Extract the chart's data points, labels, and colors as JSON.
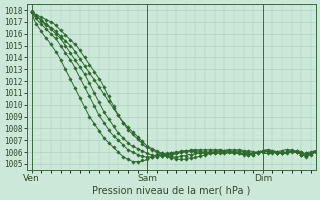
{
  "xlabel": "Pression niveau de la mer( hPa )",
  "bg_color": "#cce8d8",
  "grid_color": "#aacfbb",
  "line_color": "#2d6a2d",
  "marker_color": "#2d6a2d",
  "ylim": [
    1004.5,
    1018.5
  ],
  "yticks": [
    1005,
    1006,
    1007,
    1008,
    1009,
    1010,
    1011,
    1012,
    1013,
    1014,
    1015,
    1016,
    1017,
    1018
  ],
  "xtick_labels": [
    "Ven",
    "Sam",
    "Dim"
  ],
  "xtick_pos": [
    0,
    48,
    96
  ],
  "xlim": [
    -2,
    118
  ],
  "n_total": 120,
  "lines": [
    [
      1017.8,
      1017.6,
      1017.5,
      1017.3,
      1017.2,
      1017.0,
      1016.8,
      1016.7,
      1016.5,
      1016.4,
      1016.2,
      1016.0,
      1015.8,
      1015.6,
      1015.4,
      1015.2,
      1015.0,
      1014.8,
      1014.5,
      1014.2,
      1013.9,
      1013.6,
      1013.3,
      1013.0,
      1012.7,
      1012.4,
      1012.1,
      1011.8,
      1011.5,
      1011.2,
      1010.9,
      1010.6,
      1010.3,
      1010.0,
      1009.7,
      1009.4,
      1009.1,
      1008.8,
      1008.5,
      1008.3,
      1008.1,
      1007.9,
      1007.7,
      1007.5,
      1007.3,
      1007.1,
      1006.9,
      1006.7,
      1006.5,
      1006.4,
      1006.3,
      1006.2,
      1006.1,
      1006.0,
      1005.9,
      1005.8,
      1005.7,
      1005.6,
      1005.5,
      1005.5,
      1005.4,
      1005.4,
      1005.4,
      1005.4,
      1005.4,
      1005.5,
      1005.5,
      1005.5,
      1005.6,
      1005.6,
      1005.7,
      1005.7,
      1005.8,
      1005.8,
      1005.9,
      1005.9,
      1006.0,
      1006.0,
      1006.1,
      1006.1,
      1006.1,
      1006.2,
      1006.2,
      1006.2,
      1006.2,
      1006.2,
      1006.2,
      1006.2,
      1006.1,
      1006.1,
      1006.1,
      1006.1,
      1006.0,
      1006.0,
      1006.0,
      1006.0,
      1006.0,
      1005.9,
      1005.9,
      1005.9,
      1005.9,
      1006.0,
      1006.0,
      1006.1,
      1006.1,
      1006.2,
      1006.2,
      1006.2,
      1006.2,
      1006.1,
      1006.1,
      1006.0,
      1006.0,
      1005.9,
      1005.9,
      1005.9,
      1005.9,
      1006.0,
      1006.0,
      1006.0
    ],
    [
      1017.8,
      1017.2,
      1016.8,
      1016.5,
      1016.2,
      1015.9,
      1015.6,
      1015.4,
      1015.1,
      1014.8,
      1014.5,
      1014.2,
      1013.8,
      1013.4,
      1013.0,
      1012.6,
      1012.2,
      1011.8,
      1011.4,
      1011.0,
      1010.6,
      1010.2,
      1009.8,
      1009.4,
      1009.0,
      1008.7,
      1008.4,
      1008.1,
      1007.8,
      1007.5,
      1007.2,
      1007.0,
      1006.8,
      1006.6,
      1006.4,
      1006.2,
      1006.0,
      1005.8,
      1005.6,
      1005.5,
      1005.4,
      1005.3,
      1005.2,
      1005.2,
      1005.2,
      1005.2,
      1005.3,
      1005.3,
      1005.4,
      1005.5,
      1005.6,
      1005.7,
      1005.8,
      1005.8,
      1005.9,
      1005.9,
      1005.9,
      1005.9,
      1005.9,
      1005.9,
      1005.9,
      1006.0,
      1006.0,
      1006.1,
      1006.1,
      1006.1,
      1006.2,
      1006.2,
      1006.2,
      1006.2,
      1006.2,
      1006.2,
      1006.2,
      1006.2,
      1006.2,
      1006.2,
      1006.2,
      1006.2,
      1006.2,
      1006.2,
      1006.1,
      1006.1,
      1006.1,
      1006.0,
      1006.0,
      1006.0,
      1005.9,
      1005.9,
      1005.9,
      1005.9,
      1005.9,
      1005.9,
      1005.9,
      1006.0,
      1006.0,
      1006.1,
      1006.1,
      1006.2,
      1006.2,
      1006.2,
      1006.1,
      1006.1,
      1006.0,
      1006.0,
      1006.0,
      1005.9,
      1005.9,
      1006.0,
      1006.0,
      1006.1,
      1006.1,
      1006.1,
      1006.0,
      1005.9,
      1005.8,
      1005.8,
      1005.9,
      1006.0,
      1006.0,
      1006.0
    ],
    [
      1017.8,
      1017.5,
      1017.3,
      1017.0,
      1016.8,
      1016.6,
      1016.4,
      1016.2,
      1016.0,
      1015.8,
      1015.6,
      1015.3,
      1015.0,
      1014.7,
      1014.4,
      1014.1,
      1013.8,
      1013.5,
      1013.1,
      1012.7,
      1012.3,
      1011.9,
      1011.5,
      1011.1,
      1010.7,
      1010.3,
      1009.9,
      1009.5,
      1009.1,
      1008.8,
      1008.5,
      1008.2,
      1007.9,
      1007.6,
      1007.4,
      1007.2,
      1007.0,
      1006.8,
      1006.6,
      1006.4,
      1006.2,
      1006.1,
      1006.0,
      1005.9,
      1005.8,
      1005.7,
      1005.7,
      1005.6,
      1005.6,
      1005.6,
      1005.6,
      1005.6,
      1005.6,
      1005.7,
      1005.7,
      1005.8,
      1005.8,
      1005.9,
      1005.9,
      1006.0,
      1006.0,
      1006.0,
      1006.1,
      1006.1,
      1006.1,
      1006.1,
      1006.1,
      1006.1,
      1006.1,
      1006.1,
      1006.1,
      1006.0,
      1006.0,
      1006.0,
      1006.0,
      1006.0,
      1005.9,
      1005.9,
      1005.9,
      1005.9,
      1005.9,
      1005.9,
      1006.0,
      1006.0,
      1006.0,
      1006.1,
      1006.1,
      1006.1,
      1006.0,
      1006.0,
      1006.0,
      1005.9,
      1005.9,
      1005.9,
      1006.0,
      1006.0,
      1006.1,
      1006.1,
      1006.1,
      1006.0,
      1006.0,
      1006.0,
      1005.9,
      1005.9,
      1005.9,
      1006.0,
      1006.0,
      1006.1,
      1006.1,
      1006.0,
      1006.0,
      1005.9,
      1005.8,
      1005.8,
      1005.9,
      1006.0,
      1006.0,
      1006.1,
      1006.1,
      1006.1
    ],
    [
      1017.9,
      1017.7,
      1017.5,
      1017.3,
      1017.1,
      1016.9,
      1016.7,
      1016.6,
      1016.4,
      1016.2,
      1016.0,
      1015.8,
      1015.6,
      1015.3,
      1015.0,
      1014.7,
      1014.4,
      1014.1,
      1013.8,
      1013.5,
      1013.2,
      1012.9,
      1012.6,
      1012.2,
      1011.8,
      1011.4,
      1011.0,
      1010.6,
      1010.2,
      1009.8,
      1009.4,
      1009.1,
      1008.8,
      1008.5,
      1008.2,
      1007.9,
      1007.6,
      1007.4,
      1007.2,
      1007.0,
      1006.8,
      1006.6,
      1006.5,
      1006.4,
      1006.3,
      1006.2,
      1006.1,
      1006.0,
      1005.9,
      1005.8,
      1005.8,
      1005.7,
      1005.7,
      1005.7,
      1005.7,
      1005.7,
      1005.7,
      1005.8,
      1005.8,
      1005.8,
      1005.9,
      1005.9,
      1006.0,
      1006.0,
      1006.0,
      1006.1,
      1006.1,
      1006.1,
      1006.0,
      1006.0,
      1006.0,
      1005.9,
      1005.9,
      1005.9,
      1005.9,
      1005.9,
      1005.9,
      1006.0,
      1006.0,
      1006.0,
      1006.0,
      1006.1,
      1006.1,
      1006.1,
      1006.0,
      1006.0,
      1006.0,
      1005.9,
      1005.9,
      1005.8,
      1005.8,
      1005.8,
      1005.8,
      1005.9,
      1005.9,
      1006.0,
      1006.0,
      1006.1,
      1006.1,
      1006.1,
      1006.0,
      1006.0,
      1005.9,
      1005.9,
      1005.9,
      1005.9,
      1006.0,
      1006.0,
      1006.1,
      1006.0,
      1006.0,
      1005.9,
      1005.8,
      1005.7,
      1005.7,
      1005.8,
      1005.9,
      1006.0,
      1006.1,
      1006.1
    ],
    [
      1017.8,
      1017.7,
      1017.6,
      1017.5,
      1017.4,
      1017.3,
      1017.2,
      1017.1,
      1017.0,
      1016.9,
      1016.7,
      1016.5,
      1016.3,
      1016.1,
      1015.9,
      1015.7,
      1015.5,
      1015.3,
      1015.1,
      1014.9,
      1014.6,
      1014.3,
      1014.0,
      1013.7,
      1013.4,
      1013.1,
      1012.8,
      1012.5,
      1012.2,
      1011.9,
      1011.5,
      1011.1,
      1010.7,
      1010.3,
      1009.9,
      1009.5,
      1009.1,
      1008.8,
      1008.5,
      1008.2,
      1007.9,
      1007.7,
      1007.5,
      1007.3,
      1007.1,
      1006.9,
      1006.7,
      1006.5,
      1006.4,
      1006.3,
      1006.2,
      1006.1,
      1006.0,
      1005.9,
      1005.8,
      1005.7,
      1005.7,
      1005.6,
      1005.6,
      1005.6,
      1005.6,
      1005.6,
      1005.7,
      1005.7,
      1005.7,
      1005.8,
      1005.8,
      1005.8,
      1005.9,
      1005.9,
      1005.9,
      1006.0,
      1006.0,
      1006.0,
      1006.0,
      1006.1,
      1006.1,
      1006.1,
      1006.1,
      1006.1,
      1006.0,
      1006.0,
      1006.0,
      1005.9,
      1005.9,
      1005.9,
      1005.9,
      1005.8,
      1005.8,
      1005.8,
      1005.8,
      1005.8,
      1005.8,
      1005.9,
      1005.9,
      1006.0,
      1006.0,
      1006.1,
      1006.1,
      1006.1,
      1006.0,
      1006.0,
      1005.9,
      1005.9,
      1005.9,
      1005.9,
      1006.0,
      1006.0,
      1006.1,
      1006.0,
      1006.0,
      1005.9,
      1005.8,
      1005.7,
      1005.6,
      1005.7,
      1005.8,
      1005.9,
      1006.0,
      1006.1
    ]
  ]
}
